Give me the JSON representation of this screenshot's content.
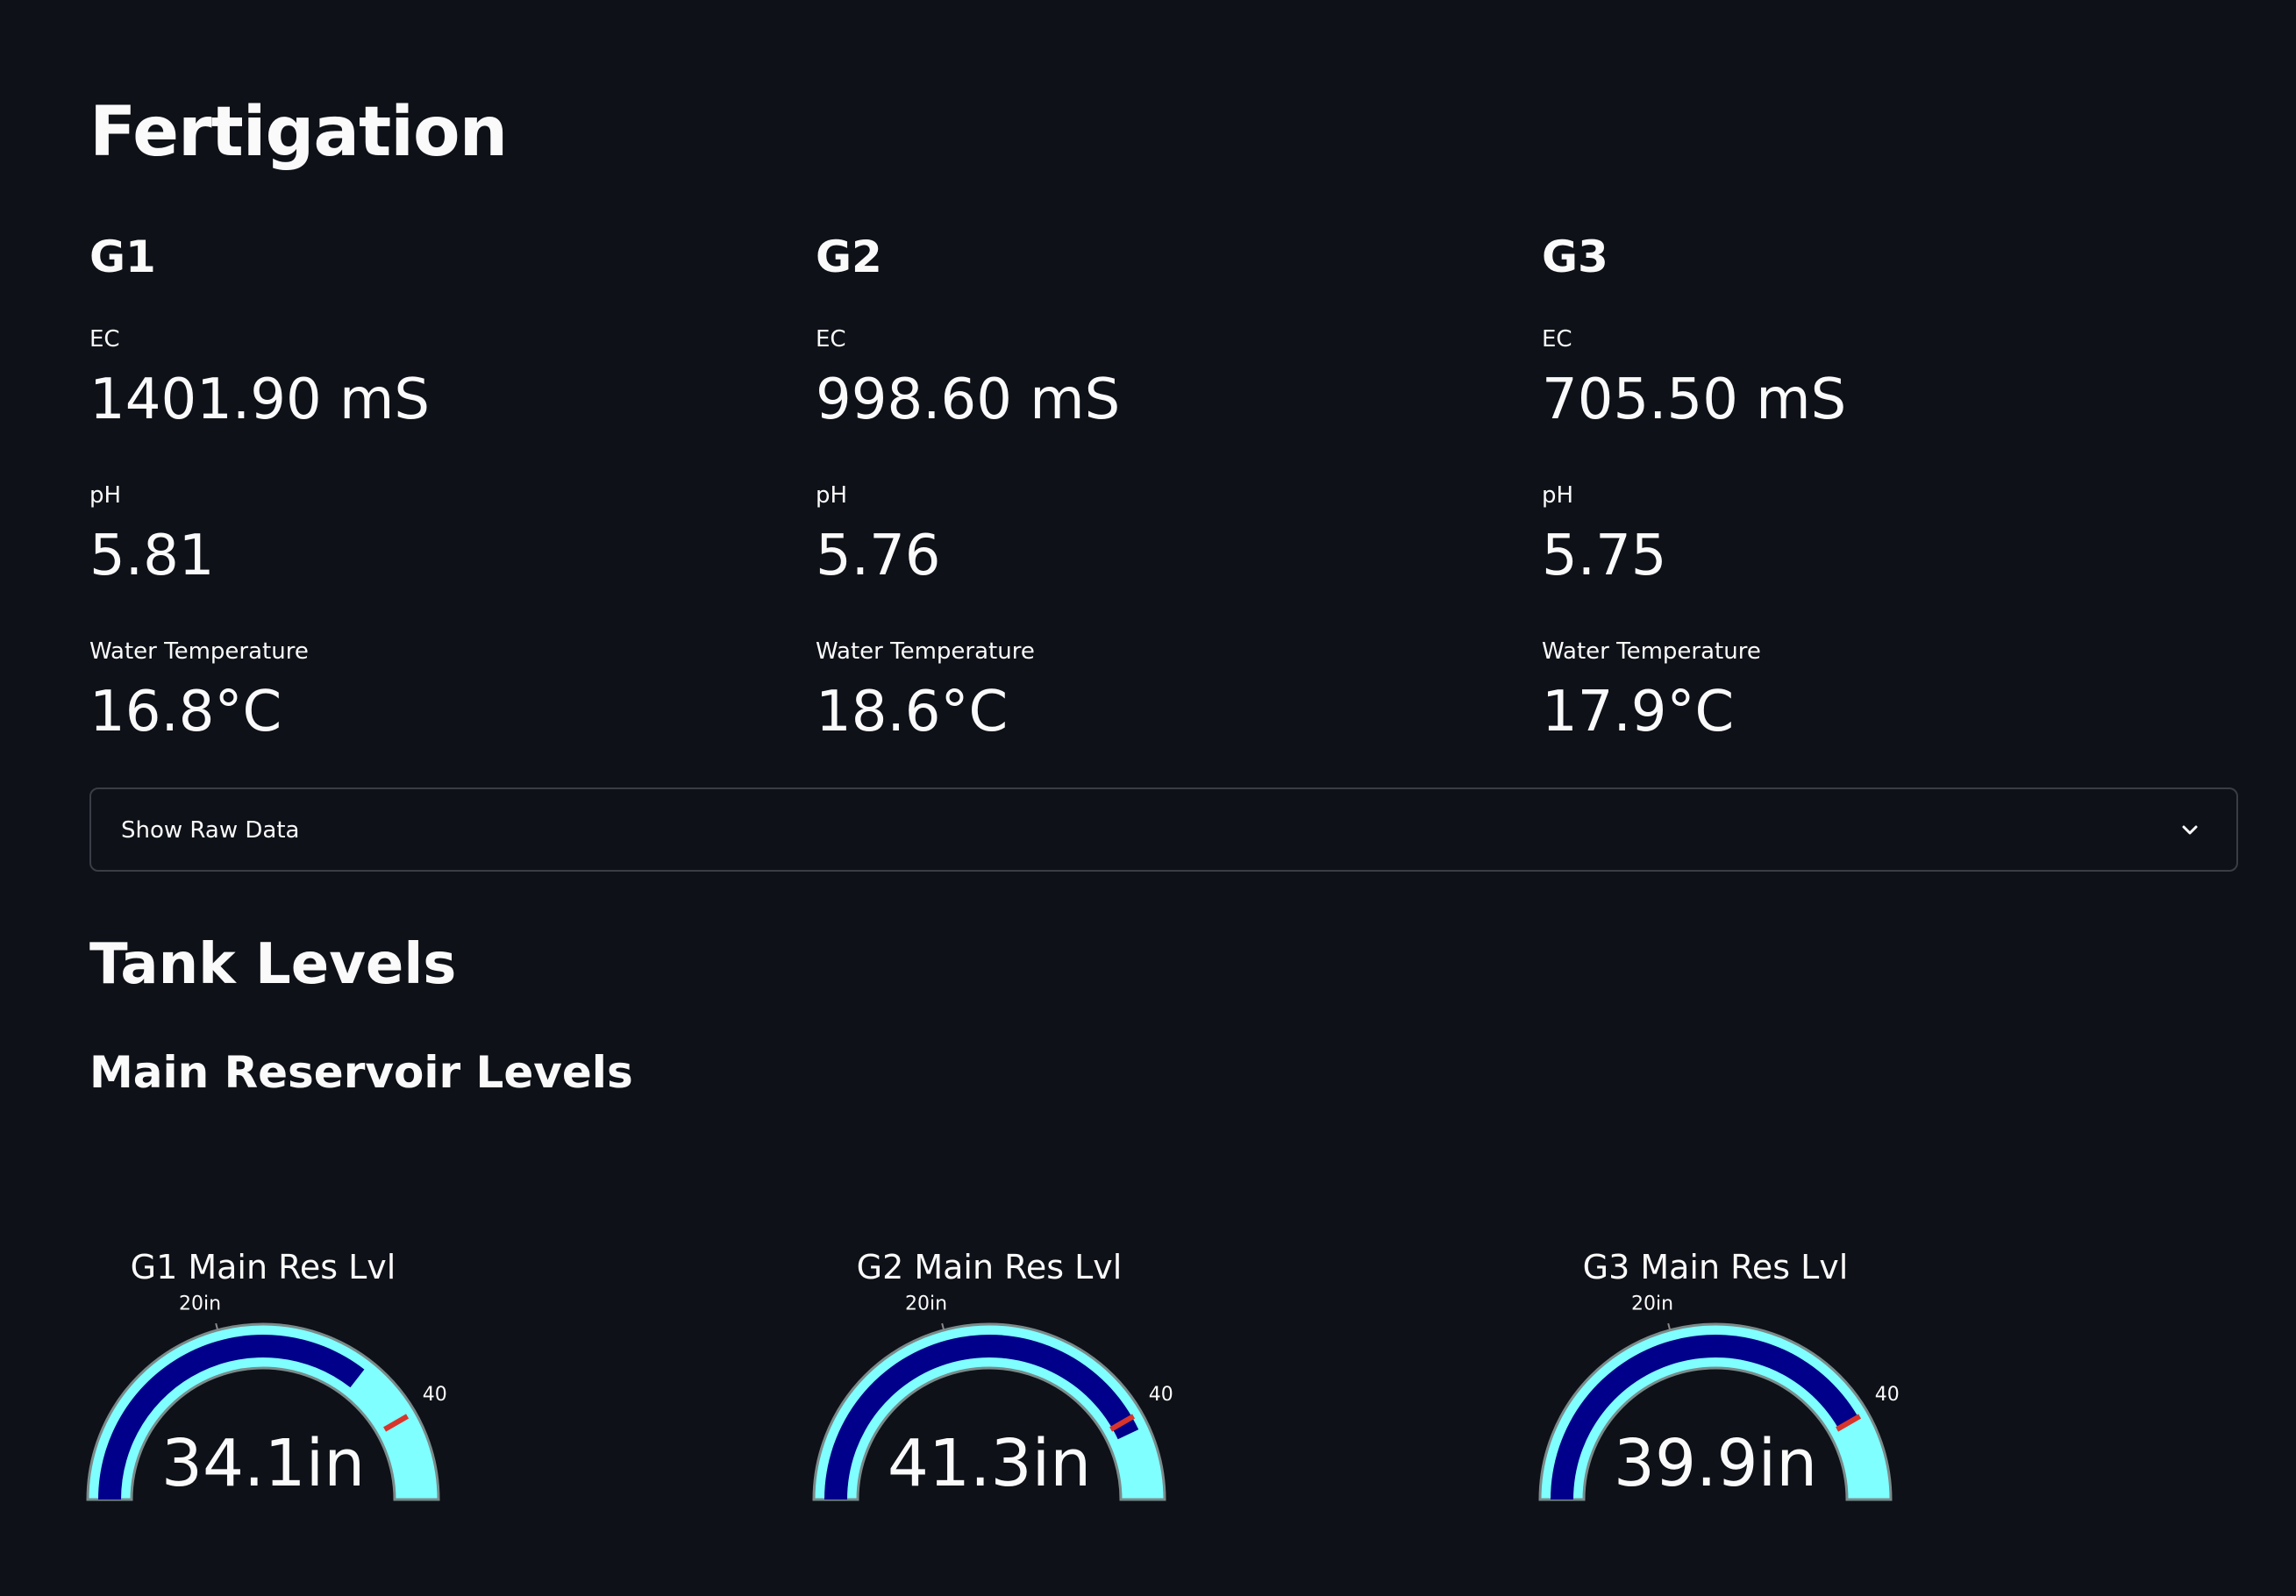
{
  "page": {
    "title": "Fertigation"
  },
  "groups": [
    {
      "name": "G1",
      "ec_label": "EC",
      "ec_value": "1401.90 mS",
      "ph_label": "pH",
      "ph_value": "5.81",
      "temp_label": "Water Temperature",
      "temp_value": "16.8°C"
    },
    {
      "name": "G2",
      "ec_label": "EC",
      "ec_value": "998.60 mS",
      "ph_label": "pH",
      "ph_value": "5.76",
      "temp_label": "Water Temperature",
      "temp_value": "18.6°C"
    },
    {
      "name": "G3",
      "ec_label": "EC",
      "ec_value": "705.50 mS",
      "ph_label": "pH",
      "ph_value": "5.75",
      "temp_label": "Water Temperature",
      "temp_value": "17.9°C"
    }
  ],
  "expander": {
    "label": "Show Raw Data",
    "icon": "chevron-down-icon"
  },
  "tank": {
    "heading": "Tank Levels",
    "subheading": "Main Reservoir Levels"
  },
  "gauges": [
    {
      "title": "G1 Main Res Lvl",
      "value": 34.1,
      "value_text": "34.1in",
      "tick_20": "20in",
      "tick_40": "40",
      "range": [
        0,
        48
      ],
      "threshold": 40
    },
    {
      "title": "G2 Main Res Lvl",
      "value": 41.3,
      "value_text": "41.3in",
      "tick_20": "20in",
      "tick_40": "40",
      "range": [
        0,
        48
      ],
      "threshold": 40
    },
    {
      "title": "G3 Main Res Lvl",
      "value": 39.9,
      "value_text": "39.9in",
      "tick_20": "20in",
      "tick_40": "40",
      "range": [
        0,
        48
      ],
      "threshold": 40
    }
  ],
  "colors": {
    "background": "#0e1117",
    "gauge_track": "#7fffff",
    "gauge_bar": "#00008b",
    "threshold": "#d9342b",
    "text": "#fafafa"
  }
}
